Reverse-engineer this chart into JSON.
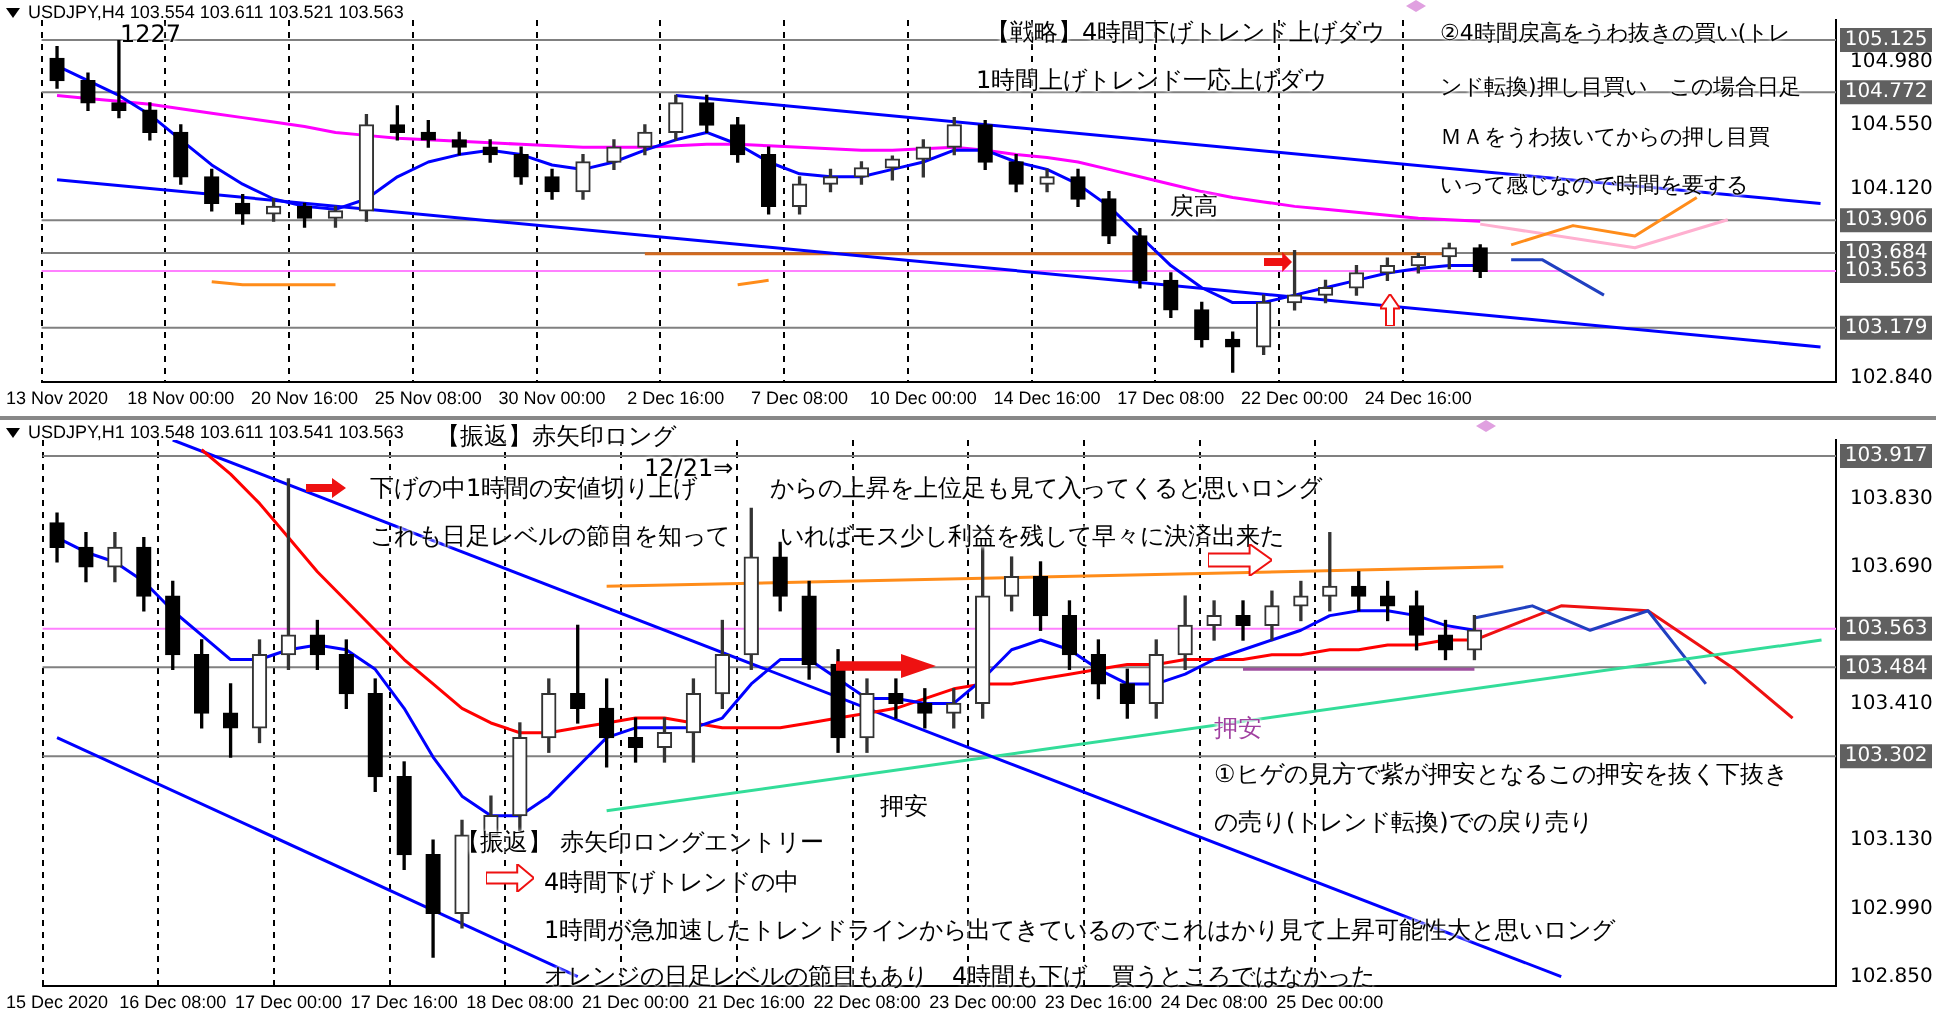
{
  "chart_data": [
    {
      "type": "candlestick",
      "title": "USDJPY,H4  103.554 103.611 103.521 103.563",
      "colors": [
        "#000000",
        "#000000",
        "#000000",
        "#000000",
        "#000000",
        "#000000",
        "#000000",
        "#333333",
        "#000000",
        "#333333",
        "#333333",
        "#000000",
        "#000000",
        "#000000",
        "#000000",
        "#000000",
        "#000000",
        "#333333",
        "#333333",
        "#333333",
        "#333333",
        "#000000",
        "#000000",
        "#000000",
        "#333333",
        "#333333",
        "#333333",
        "#333333",
        "#333333",
        "#333333",
        "#000000",
        "#000000",
        "#333333",
        "#000000",
        "#000000",
        "#000000",
        "#000000",
        "#000000",
        "#000000",
        "#333333",
        "#333333",
        "#333333",
        "#333333",
        "#333333",
        "#333333",
        "#333333",
        "#000000",
        null,
        null,
        null,
        null,
        null,
        null,
        null,
        null,
        null,
        null,
        null
      ],
      "categories": [
        "13 Nov 2020",
        null,
        null,
        null,
        "18 Nov 00:00",
        null,
        null,
        null,
        "20 Nov 16:00",
        null,
        null,
        null,
        "25 Nov 08:00",
        null,
        null,
        null,
        "30 Nov 00:00",
        null,
        null,
        null,
        "2 Dec 16:00",
        null,
        null,
        null,
        "7 Dec 08:00",
        null,
        null,
        null,
        "10 Dec 00:00",
        null,
        null,
        null,
        "14 Dec 16:00",
        null,
        null,
        null,
        "17 Dec 08:00",
        null,
        null,
        null,
        "22 Dec 00:00",
        null,
        null,
        null,
        "24 Dec 16:00",
        null,
        null,
        null,
        null,
        null,
        null,
        null,
        null,
        null,
        null,
        null,
        null,
        null
      ],
      "ohlc": [
        [
          105.0,
          105.08,
          104.8,
          104.85
        ],
        [
          104.85,
          104.9,
          104.65,
          104.7
        ],
        [
          104.7,
          105.12,
          104.6,
          104.65
        ],
        [
          104.65,
          104.7,
          104.45,
          104.5
        ],
        [
          104.5,
          104.55,
          104.15,
          104.2
        ],
        [
          104.2,
          104.25,
          103.97,
          104.02
        ],
        [
          104.02,
          104.08,
          103.88,
          103.95
        ],
        [
          103.95,
          104.05,
          103.9,
          104.0
        ],
        [
          104.0,
          104.02,
          103.86,
          103.92
        ],
        [
          103.92,
          104.0,
          103.86,
          103.97
        ],
        [
          103.97,
          104.62,
          103.9,
          104.55
        ],
        [
          104.55,
          104.68,
          104.45,
          104.5
        ],
        [
          104.5,
          104.58,
          104.4,
          104.45
        ],
        [
          104.45,
          104.5,
          104.35,
          104.4
        ],
        [
          104.4,
          104.45,
          104.3,
          104.35
        ],
        [
          104.35,
          104.4,
          104.15,
          104.2
        ],
        [
          104.2,
          104.25,
          104.05,
          104.1
        ],
        [
          104.1,
          104.35,
          104.05,
          104.3
        ],
        [
          104.3,
          104.45,
          104.25,
          104.4
        ],
        [
          104.4,
          104.55,
          104.35,
          104.5
        ],
        [
          104.5,
          104.75,
          104.45,
          104.7
        ],
        [
          104.7,
          104.75,
          104.5,
          104.55
        ],
        [
          104.55,
          104.6,
          104.3,
          104.35
        ],
        [
          104.35,
          104.4,
          103.95,
          104.0
        ],
        [
          104.0,
          104.2,
          103.95,
          104.15
        ],
        [
          104.15,
          104.25,
          104.1,
          104.2
        ],
        [
          104.2,
          104.3,
          104.15,
          104.26
        ],
        [
          104.26,
          104.34,
          104.18,
          104.32
        ],
        [
          104.32,
          104.45,
          104.2,
          104.4
        ],
        [
          104.4,
          104.6,
          104.35,
          104.55
        ],
        [
          104.55,
          104.58,
          104.25,
          104.3
        ],
        [
          104.3,
          104.35,
          104.1,
          104.15
        ],
        [
          104.15,
          104.25,
          104.1,
          104.2
        ],
        [
          104.2,
          104.25,
          104.0,
          104.05
        ],
        [
          104.05,
          104.1,
          103.75,
          103.8
        ],
        [
          103.8,
          103.85,
          103.45,
          103.5
        ],
        [
          103.5,
          103.55,
          103.25,
          103.3
        ],
        [
          103.3,
          103.35,
          103.05,
          103.1
        ],
        [
          103.1,
          103.15,
          102.88,
          103.05
        ],
        [
          103.05,
          103.4,
          103.0,
          103.35
        ],
        [
          103.35,
          103.7,
          103.3,
          103.4
        ],
        [
          103.4,
          103.5,
          103.35,
          103.45
        ],
        [
          103.45,
          103.6,
          103.4,
          103.55
        ],
        [
          103.55,
          103.65,
          103.5,
          103.6
        ],
        [
          103.6,
          103.68,
          103.55,
          103.66
        ],
        [
          103.66,
          103.75,
          103.58,
          103.72
        ],
        [
          103.72,
          103.74,
          103.52,
          103.56
        ],
        null,
        null,
        null,
        null,
        null,
        null,
        null,
        null,
        null,
        null,
        null
      ],
      "series": [
        {
          "type": "line",
          "color": "#0000ff",
          "values": [
            104.95,
            104.85,
            104.75,
            104.62,
            104.45,
            104.28,
            104.15,
            104.05,
            104.0,
            103.98,
            104.05,
            104.2,
            104.3,
            104.35,
            104.38,
            104.35,
            104.28,
            104.25,
            104.3,
            104.38,
            104.45,
            104.5,
            104.42,
            104.3,
            104.22,
            104.2,
            104.2,
            104.25,
            104.3,
            104.38,
            104.38,
            104.3,
            104.25,
            104.15,
            104.0,
            103.8,
            103.6,
            103.45,
            103.35,
            103.35,
            103.4,
            103.45,
            103.5,
            103.55,
            103.58,
            103.6,
            103.6,
            null,
            null,
            null,
            null,
            null,
            null,
            null,
            null,
            null,
            null,
            null
          ]
        },
        {
          "type": "line",
          "color": "#ff00ff",
          "values": [
            104.75,
            104.73,
            104.71,
            104.69,
            104.66,
            104.63,
            104.6,
            104.57,
            104.54,
            104.5,
            104.48,
            104.46,
            104.45,
            104.44,
            104.43,
            104.42,
            104.41,
            104.4,
            104.4,
            104.4,
            104.41,
            104.42,
            104.42,
            104.41,
            104.4,
            104.39,
            104.38,
            104.38,
            104.39,
            104.4,
            104.38,
            104.35,
            104.33,
            104.3,
            104.25,
            104.2,
            104.15,
            104.1,
            104.06,
            104.03,
            104.0,
            103.98,
            103.96,
            103.94,
            103.92,
            103.91,
            103.9,
            null,
            null,
            null,
            null,
            null,
            null,
            null,
            null,
            null,
            null,
            null
          ]
        },
        {
          "type": "line",
          "color": "#0000ff",
          "values": [
            null,
            null,
            null,
            null,
            null,
            null,
            null,
            null,
            null,
            null,
            null,
            null,
            null,
            null,
            null,
            null,
            null,
            null,
            null,
            null,
            104.75,
            null,
            null,
            null,
            null,
            null,
            null,
            null,
            null,
            null,
            null,
            null,
            null,
            null,
            null,
            null,
            null,
            null,
            null,
            null,
            null,
            null,
            null,
            null,
            null,
            null,
            null,
            null,
            null,
            null,
            null,
            null,
            null,
            null,
            null,
            null,
            null,
            104.02
          ]
        },
        {
          "type": "line",
          "color": "#0000ff",
          "values": [
            104.18,
            null,
            null,
            null,
            null,
            null,
            null,
            null,
            null,
            null,
            null,
            null,
            null,
            null,
            null,
            null,
            null,
            null,
            null,
            null,
            null,
            null,
            null,
            null,
            null,
            null,
            null,
            null,
            null,
            null,
            null,
            null,
            null,
            null,
            null,
            null,
            null,
            null,
            null,
            null,
            null,
            null,
            null,
            null,
            null,
            null,
            null,
            null,
            null,
            null,
            null,
            null,
            null,
            null,
            null,
            null,
            null,
            103.05
          ]
        },
        {
          "type": "line",
          "color": "#d2691e",
          "values": [
            null,
            null,
            null,
            null,
            null,
            null,
            null,
            null,
            null,
            null,
            null,
            null,
            null,
            null,
            null,
            null,
            null,
            null,
            null,
            103.68,
            null,
            null,
            null,
            null,
            null,
            null,
            null,
            null,
            null,
            null,
            null,
            null,
            null,
            null,
            null,
            null,
            null,
            null,
            null,
            null,
            null,
            null,
            null,
            null,
            null,
            103.68,
            null,
            null,
            null,
            null,
            null,
            null,
            null,
            null,
            null,
            null,
            null,
            null
          ]
        },
        {
          "type": "line",
          "color": "#ff8c1a",
          "values": [
            null,
            null,
            null,
            null,
            null,
            103.49,
            103.47,
            null,
            null,
            103.47,
            null,
            null,
            null,
            null,
            null,
            null,
            null,
            null,
            null,
            null,
            null,
            null,
            null,
            null,
            null,
            null,
            null,
            null,
            null,
            null,
            null,
            null,
            null,
            null,
            null,
            null,
            null,
            null,
            null,
            null,
            null,
            null,
            null,
            null,
            null,
            null,
            null,
            null,
            null,
            null,
            null,
            null,
            null,
            null,
            null,
            null,
            null,
            null
          ]
        },
        {
          "type": "line",
          "color": "#ff8c1a",
          "values": [
            null,
            null,
            null,
            null,
            null,
            null,
            null,
            null,
            null,
            null,
            null,
            null,
            null,
            null,
            null,
            null,
            null,
            null,
            null,
            null,
            null,
            null,
            103.47,
            103.5,
            null,
            null,
            null,
            null,
            null,
            null,
            null,
            null,
            null,
            null,
            null,
            null,
            null,
            null,
            null,
            null,
            null,
            null,
            null,
            null,
            null,
            null,
            null,
            null,
            null,
            null,
            null,
            null,
            null,
            null,
            null,
            null,
            null,
            null
          ]
        },
        {
          "type": "line",
          "color": "#ff8c1a",
          "values": [
            null,
            null,
            null,
            null,
            null,
            null,
            null,
            null,
            null,
            null,
            null,
            null,
            null,
            null,
            null,
            null,
            null,
            null,
            null,
            null,
            null,
            null,
            null,
            null,
            null,
            null,
            null,
            null,
            null,
            null,
            null,
            null,
            null,
            null,
            null,
            null,
            null,
            null,
            null,
            null,
            null,
            null,
            null,
            null,
            null,
            null,
            null,
            103.74,
            null,
            103.87,
            null,
            103.8,
            null,
            104.06,
            null,
            null,
            null,
            null
          ]
        },
        {
          "type": "line",
          "color": "#ffb0d0",
          "values": [
            null,
            null,
            null,
            null,
            null,
            null,
            null,
            null,
            null,
            null,
            null,
            null,
            null,
            null,
            null,
            null,
            null,
            null,
            null,
            null,
            null,
            null,
            null,
            null,
            null,
            null,
            null,
            null,
            null,
            null,
            null,
            null,
            null,
            null,
            null,
            null,
            null,
            null,
            null,
            null,
            null,
            null,
            null,
            null,
            null,
            null,
            103.88,
            null,
            null,
            null,
            null,
            103.72,
            null,
            null,
            103.91,
            null,
            null,
            null
          ]
        },
        {
          "type": "line",
          "color": "#2040c0",
          "values": [
            null,
            null,
            null,
            null,
            null,
            null,
            null,
            null,
            null,
            null,
            null,
            null,
            null,
            null,
            null,
            null,
            null,
            null,
            null,
            null,
            null,
            null,
            null,
            null,
            null,
            null,
            null,
            null,
            null,
            null,
            null,
            null,
            null,
            null,
            null,
            null,
            null,
            null,
            null,
            null,
            null,
            null,
            null,
            null,
            null,
            null,
            null,
            103.64,
            103.64,
            null,
            103.4,
            null,
            null,
            null,
            null,
            null,
            null,
            null
          ]
        }
      ],
      "ylim": [
        102.81,
        105.26
      ],
      "yticks": [
        {
          "value": 102.84,
          "label": "102.840"
        },
        {
          "value": 104.12,
          "label": "104.120"
        },
        {
          "value": 104.55,
          "label": "104.550"
        },
        {
          "value": 104.98,
          "label": "104.980"
        }
      ],
      "grid": "x",
      "ref_lines": [
        {
          "axis": "y",
          "value": 105.125,
          "label": "105.125",
          "color": "#808080"
        },
        {
          "axis": "y",
          "value": 104.772,
          "label": "104.772",
          "color": "#808080"
        },
        {
          "axis": "y",
          "value": 103.906,
          "label": "103.906",
          "color": "#808080"
        },
        {
          "axis": "y",
          "value": 103.684,
          "label": "103.684",
          "color": "#808080"
        },
        {
          "axis": "y",
          "value": 103.563,
          "label": "103.563",
          "color": "#ff80ff"
        },
        {
          "axis": "y",
          "value": 103.179,
          "label": "103.179",
          "color": "#808080"
        }
      ],
      "annotations": [
        "1227",
        "【戦略】4時間下げトレンド上げダウ",
        "1時間上げトレンド一応上げダウ",
        "②4時間戻高をうわ抜きの買い(トレ",
        "ンド転換)押し目買い　この場合日足",
        "ＭＡをうわ抜いてからの押し目買",
        "いって感じなので時間を要する",
        "戻高"
      ]
    },
    {
      "type": "candlestick",
      "title": "USDJPY,H1  103.548 103.611 103.541 103.563",
      "colors": [
        "#000000",
        "#000000",
        "#333333",
        "#000000",
        "#000000",
        "#000000",
        "#000000",
        "#333333",
        "#333333",
        "#000000",
        "#000000",
        "#000000",
        "#000000",
        "#000000",
        "#333333",
        "#333333",
        "#333333",
        "#333333",
        "#000000",
        "#000000",
        "#000000",
        "#333333",
        "#333333",
        "#333333",
        "#333333",
        "#000000",
        "#000000",
        "#000000",
        "#333333",
        "#000000",
        "#000000",
        "#333333",
        "#333333",
        "#333333",
        "#000000",
        "#000000",
        "#000000",
        "#000000",
        "#333333",
        "#333333",
        "#333333",
        "#000000",
        "#333333",
        "#333333",
        "#333333",
        "#000000",
        "#000000",
        "#000000",
        "#000000",
        "#333333",
        null,
        null,
        null,
        null,
        null,
        null,
        null,
        null,
        null,
        null,
        null,
        null
      ],
      "categories": [
        "15 Dec 2020",
        null,
        null,
        null,
        "16 Dec 08:00",
        null,
        null,
        null,
        "17 Dec 00:00",
        null,
        null,
        null,
        "17 Dec 16:00",
        null,
        null,
        null,
        "18 Dec 08:00",
        null,
        null,
        null,
        "21 Dec 00:00",
        null,
        null,
        null,
        "21 Dec 16:00",
        null,
        null,
        null,
        "22 Dec 08:00",
        null,
        null,
        null,
        "23 Dec 00:00",
        null,
        null,
        null,
        "23 Dec 16:00",
        null,
        null,
        null,
        "24 Dec 08:00",
        null,
        null,
        null,
        "25 Dec 00:00",
        null,
        null,
        null,
        null,
        null,
        null,
        null,
        null,
        null,
        null,
        null,
        null,
        null,
        null,
        null,
        null,
        null
      ],
      "ohlc": [
        [
          103.78,
          103.8,
          103.7,
          103.73
        ],
        [
          103.73,
          103.76,
          103.66,
          103.69
        ],
        [
          103.69,
          103.76,
          103.66,
          103.73
        ],
        [
          103.73,
          103.75,
          103.6,
          103.63
        ],
        [
          103.63,
          103.66,
          103.48,
          103.51
        ],
        [
          103.51,
          103.54,
          103.36,
          103.39
        ],
        [
          103.39,
          103.45,
          103.3,
          103.36
        ],
        [
          103.36,
          103.54,
          103.33,
          103.51
        ],
        [
          103.51,
          103.87,
          103.48,
          103.55
        ],
        [
          103.55,
          103.58,
          103.48,
          103.51
        ],
        [
          103.51,
          103.54,
          103.4,
          103.43
        ],
        [
          103.43,
          103.46,
          103.23,
          103.26
        ],
        [
          103.26,
          103.29,
          103.07,
          103.1
        ],
        [
          103.1,
          103.13,
          102.89,
          102.98
        ],
        [
          102.98,
          103.17,
          102.95,
          103.14
        ],
        [
          103.14,
          103.22,
          103.11,
          103.18
        ],
        [
          103.18,
          103.37,
          103.15,
          103.34
        ],
        [
          103.34,
          103.46,
          103.31,
          103.43
        ],
        [
          103.43,
          103.57,
          103.37,
          103.4
        ],
        [
          103.4,
          103.46,
          103.28,
          103.34
        ],
        [
          103.34,
          103.38,
          103.29,
          103.32
        ],
        [
          103.32,
          103.38,
          103.29,
          103.35
        ],
        [
          103.35,
          103.46,
          103.29,
          103.43
        ],
        [
          103.43,
          103.58,
          103.4,
          103.51
        ],
        [
          103.51,
          103.81,
          103.48,
          103.71
        ],
        [
          103.71,
          103.74,
          103.6,
          103.63
        ],
        [
          103.63,
          103.66,
          103.46,
          103.49
        ],
        [
          103.49,
          103.52,
          103.31,
          103.34
        ],
        [
          103.34,
          103.46,
          103.31,
          103.43
        ],
        [
          103.43,
          103.46,
          103.38,
          103.41
        ],
        [
          103.41,
          103.44,
          103.36,
          103.39
        ],
        [
          103.39,
          103.44,
          103.36,
          103.41
        ],
        [
          103.41,
          103.73,
          103.38,
          103.63
        ],
        [
          103.63,
          103.71,
          103.6,
          103.67
        ],
        [
          103.67,
          103.7,
          103.56,
          103.59
        ],
        [
          103.59,
          103.62,
          103.48,
          103.51
        ],
        [
          103.51,
          103.54,
          103.42,
          103.45
        ],
        [
          103.45,
          103.48,
          103.38,
          103.41
        ],
        [
          103.41,
          103.54,
          103.38,
          103.51
        ],
        [
          103.51,
          103.63,
          103.48,
          103.57
        ],
        [
          103.57,
          103.62,
          103.54,
          103.59
        ],
        [
          103.59,
          103.62,
          103.54,
          103.57
        ],
        [
          103.57,
          103.64,
          103.54,
          103.61
        ],
        [
          103.61,
          103.66,
          103.58,
          103.63
        ],
        [
          103.63,
          103.76,
          103.6,
          103.65
        ],
        [
          103.65,
          103.68,
          103.6,
          103.63
        ],
        [
          103.63,
          103.66,
          103.58,
          103.61
        ],
        [
          103.61,
          103.64,
          103.52,
          103.55
        ],
        [
          103.55,
          103.58,
          103.5,
          103.52
        ],
        [
          103.52,
          103.59,
          103.5,
          103.56
        ],
        null,
        null,
        null,
        null,
        null,
        null,
        null,
        null,
        null,
        null,
        null,
        null
      ],
      "series": [
        {
          "type": "line",
          "color": "#0000ff",
          "values": [
            103.75,
            103.72,
            103.7,
            103.66,
            103.6,
            103.55,
            103.5,
            103.5,
            103.52,
            103.53,
            103.52,
            103.48,
            103.4,
            103.3,
            103.22,
            103.18,
            103.18,
            103.22,
            103.28,
            103.34,
            103.36,
            103.36,
            103.36,
            103.38,
            103.45,
            103.5,
            103.5,
            103.46,
            103.42,
            103.42,
            103.41,
            103.41,
            103.46,
            103.52,
            103.54,
            103.52,
            103.48,
            103.45,
            103.45,
            103.47,
            103.5,
            103.52,
            103.54,
            103.56,
            103.59,
            103.6,
            103.6,
            103.59,
            103.57,
            103.56,
            null,
            null,
            null,
            null,
            null,
            null,
            null,
            null,
            null,
            null,
            null,
            null
          ]
        },
        {
          "type": "line",
          "color": "#ff0000",
          "values": [
            null,
            null,
            null,
            null,
            null,
            103.93,
            103.88,
            103.82,
            103.75,
            103.68,
            103.62,
            103.56,
            103.5,
            103.45,
            103.4,
            103.37,
            103.35,
            103.35,
            103.36,
            103.37,
            103.38,
            103.38,
            103.37,
            103.36,
            103.36,
            103.36,
            103.37,
            103.38,
            103.39,
            103.4,
            103.42,
            103.44,
            103.45,
            103.45,
            103.46,
            103.47,
            103.48,
            103.49,
            103.49,
            103.5,
            103.5,
            103.5,
            103.51,
            103.51,
            103.52,
            103.52,
            103.53,
            103.53,
            103.54,
            103.54,
            null,
            null,
            null,
            null,
            null,
            null,
            null,
            null,
            null,
            null,
            null,
            null
          ]
        },
        {
          "type": "line",
          "color": "#0000ff",
          "values": [
            null,
            null,
            null,
            null,
            103.95,
            null,
            null,
            null,
            null,
            null,
            null,
            null,
            null,
            null,
            null,
            null,
            null,
            null,
            null,
            null,
            null,
            null,
            null,
            null,
            null,
            null,
            null,
            null,
            null,
            null,
            null,
            null,
            null,
            null,
            null,
            null,
            null,
            null,
            null,
            null,
            null,
            null,
            null,
            null,
            null,
            null,
            null,
            null,
            null,
            null,
            null,
            null,
            102.85,
            null,
            null,
            null,
            null,
            null,
            null,
            null,
            null,
            null
          ]
        },
        {
          "type": "line",
          "color": "#0000ff",
          "values": [
            103.34,
            null,
            null,
            null,
            null,
            null,
            null,
            null,
            null,
            null,
            null,
            null,
            null,
            null,
            null,
            null,
            null,
            null,
            102.85,
            null,
            null,
            null,
            null,
            null,
            null,
            null,
            null,
            null,
            null,
            null,
            null,
            null,
            null,
            null,
            null,
            null,
            null,
            null,
            null,
            null,
            null,
            null,
            null,
            null,
            null,
            null,
            null,
            null,
            null,
            null,
            null,
            null,
            null,
            null,
            null,
            null,
            null,
            null,
            null,
            null,
            null,
            null
          ]
        },
        {
          "type": "line",
          "color": "#33dd99",
          "values": [
            null,
            null,
            null,
            null,
            null,
            null,
            null,
            null,
            null,
            null,
            null,
            null,
            null,
            null,
            null,
            null,
            null,
            null,
            null,
            103.19,
            null,
            null,
            null,
            null,
            null,
            null,
            null,
            null,
            null,
            null,
            null,
            null,
            null,
            null,
            null,
            null,
            null,
            null,
            null,
            null,
            null,
            null,
            null,
            null,
            null,
            null,
            null,
            null,
            null,
            null,
            null,
            null,
            null,
            null,
            null,
            null,
            null,
            null,
            null,
            null,
            null,
            103.54
          ]
        },
        {
          "type": "line",
          "color": "#ff8c1a",
          "values": [
            null,
            null,
            null,
            null,
            null,
            null,
            null,
            null,
            null,
            null,
            null,
            null,
            null,
            null,
            null,
            null,
            null,
            null,
            null,
            103.65,
            null,
            null,
            null,
            null,
            null,
            null,
            null,
            null,
            null,
            null,
            null,
            null,
            null,
            null,
            null,
            null,
            null,
            null,
            null,
            null,
            null,
            null,
            null,
            null,
            null,
            null,
            null,
            null,
            null,
            null,
            103.69,
            null,
            null,
            null,
            null,
            null,
            null,
            null,
            null,
            null,
            null,
            null
          ]
        },
        {
          "type": "line",
          "color": "#a050a0",
          "values": [
            null,
            null,
            null,
            null,
            null,
            null,
            null,
            null,
            null,
            null,
            null,
            null,
            null,
            null,
            null,
            null,
            null,
            null,
            null,
            null,
            null,
            null,
            null,
            null,
            null,
            null,
            null,
            null,
            null,
            null,
            null,
            null,
            null,
            null,
            null,
            null,
            null,
            null,
            null,
            null,
            null,
            103.48,
            null,
            null,
            null,
            null,
            null,
            null,
            null,
            103.48,
            null,
            null,
            null,
            null,
            null,
            null,
            null,
            null,
            null,
            null,
            null,
            null
          ]
        },
        {
          "type": "line",
          "color": "#2040c0",
          "values": [
            null,
            null,
            null,
            null,
            null,
            null,
            null,
            null,
            null,
            null,
            null,
            null,
            null,
            null,
            null,
            null,
            null,
            null,
            null,
            null,
            null,
            null,
            null,
            null,
            null,
            null,
            null,
            null,
            null,
            null,
            null,
            null,
            null,
            null,
            null,
            null,
            null,
            null,
            null,
            null,
            null,
            null,
            null,
            null,
            null,
            null,
            null,
            null,
            null,
            103.585,
            null,
            103.61,
            null,
            103.56,
            null,
            103.6,
            null,
            103.45,
            null,
            null,
            null,
            null
          ]
        },
        {
          "type": "line",
          "color": "#ee1111",
          "values": [
            null,
            null,
            null,
            null,
            null,
            null,
            null,
            null,
            null,
            null,
            null,
            null,
            null,
            null,
            null,
            null,
            null,
            null,
            null,
            null,
            null,
            null,
            null,
            null,
            null,
            null,
            null,
            null,
            null,
            null,
            null,
            null,
            null,
            null,
            null,
            null,
            null,
            null,
            null,
            null,
            null,
            null,
            null,
            null,
            null,
            null,
            null,
            null,
            null,
            103.54,
            null,
            null,
            103.61,
            null,
            null,
            103.6,
            null,
            null,
            103.48,
            null,
            103.38,
            null
          ]
        }
      ],
      "ylim": [
        102.83,
        103.95
      ],
      "yticks": [
        {
          "value": 102.85,
          "label": "102.850"
        },
        {
          "value": 102.99,
          "label": "102.990"
        },
        {
          "value": 103.13,
          "label": "103.130"
        },
        {
          "value": 103.41,
          "label": "103.410"
        },
        {
          "value": 103.69,
          "label": "103.690"
        },
        {
          "value": 103.83,
          "label": "103.830"
        }
      ],
      "grid": "x",
      "ref_lines": [
        {
          "axis": "y",
          "value": 103.917,
          "label": "103.917",
          "color": "#808080"
        },
        {
          "axis": "y",
          "value": 103.563,
          "label": "103.563",
          "color": "#ff80ff"
        },
        {
          "axis": "y",
          "value": 103.484,
          "label": "103.484",
          "color": "#808080"
        },
        {
          "axis": "y",
          "value": 103.302,
          "label": "103.302",
          "color": "#808080"
        }
      ],
      "annotations": [
        "【振返】赤矢印ロング",
        "12/21⇒",
        "下げの中1時間の安値切り上げ",
        "からの上昇を上位足も見て入ってくると思いロング",
        "これも日足レベルの節目を知って",
        "いればモス少し利益を残して早々に決済出来た",
        "押安",
        "押安",
        "①ヒゲの見方で紫が押安となるこの押安を抜く下抜き",
        "の売り(トレンド転換)での戻り売り",
        "【振返】 赤矢印ロングエントリー",
        "4時間下げトレンドの中",
        "1時間が急加速したトレンドラインから出てきているのでこれはかり見て上昇可能性大と思いロング",
        "オレンジの日足レベルの節目もあり　4時間も下げ　買うところではなかった"
      ]
    }
  ]
}
